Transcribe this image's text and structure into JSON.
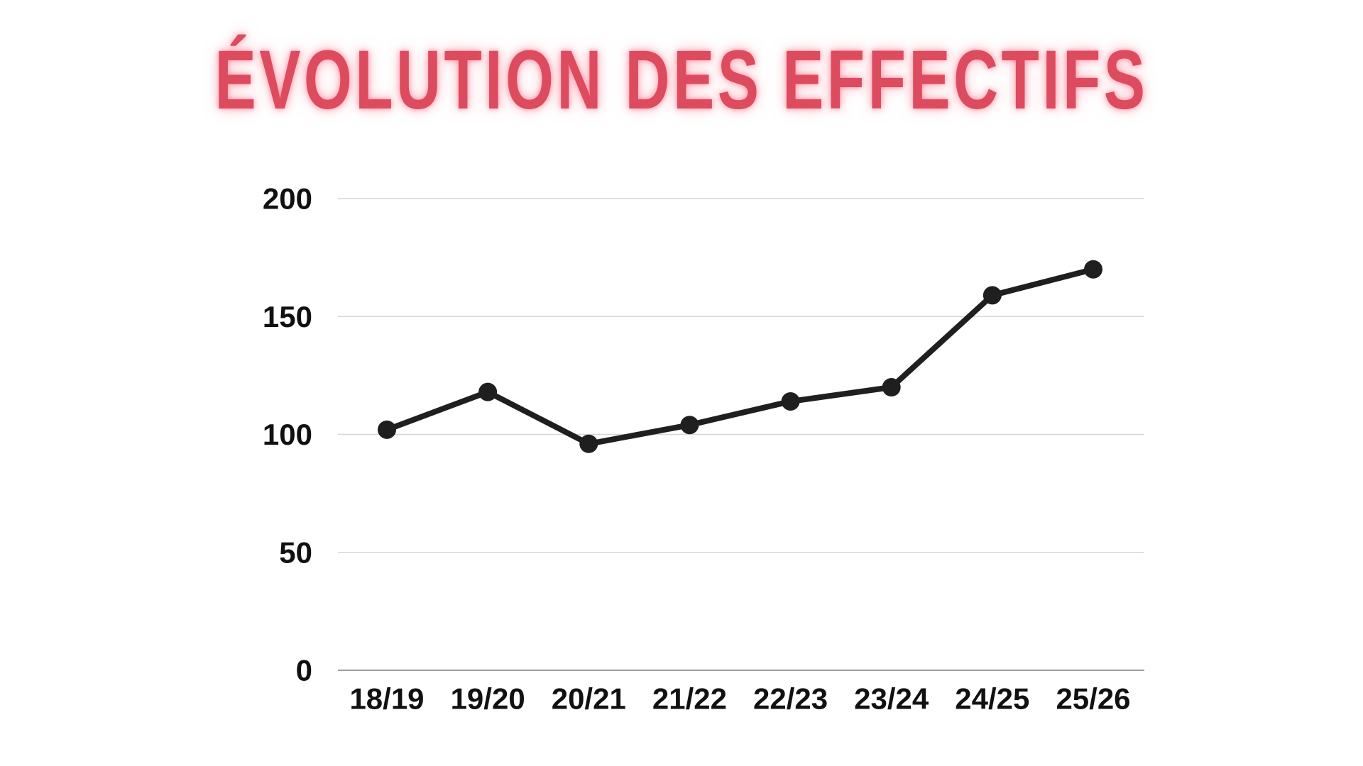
{
  "chart_data": {
    "type": "line",
    "title": "ÉVOLUTION DES EFFECTIFS",
    "xlabel": "",
    "ylabel": "",
    "categories": [
      "18/19",
      "19/20",
      "20/21",
      "21/22",
      "22/23",
      "23/24",
      "24/25",
      "25/26"
    ],
    "series": [
      {
        "values": [
          102,
          118,
          96,
          104,
          114,
          120,
          159,
          170
        ]
      }
    ],
    "ylim": [
      0,
      200
    ],
    "yticks": [
      "0",
      "50",
      "100",
      "150",
      "200"
    ],
    "grid": true,
    "legend": "none",
    "colors": {
      "title": "#dd4b5f",
      "line": "#1f1f1f",
      "gridline": "#d6d6d6",
      "axis": "#9e9e9e",
      "tick_text": "#111111"
    }
  }
}
